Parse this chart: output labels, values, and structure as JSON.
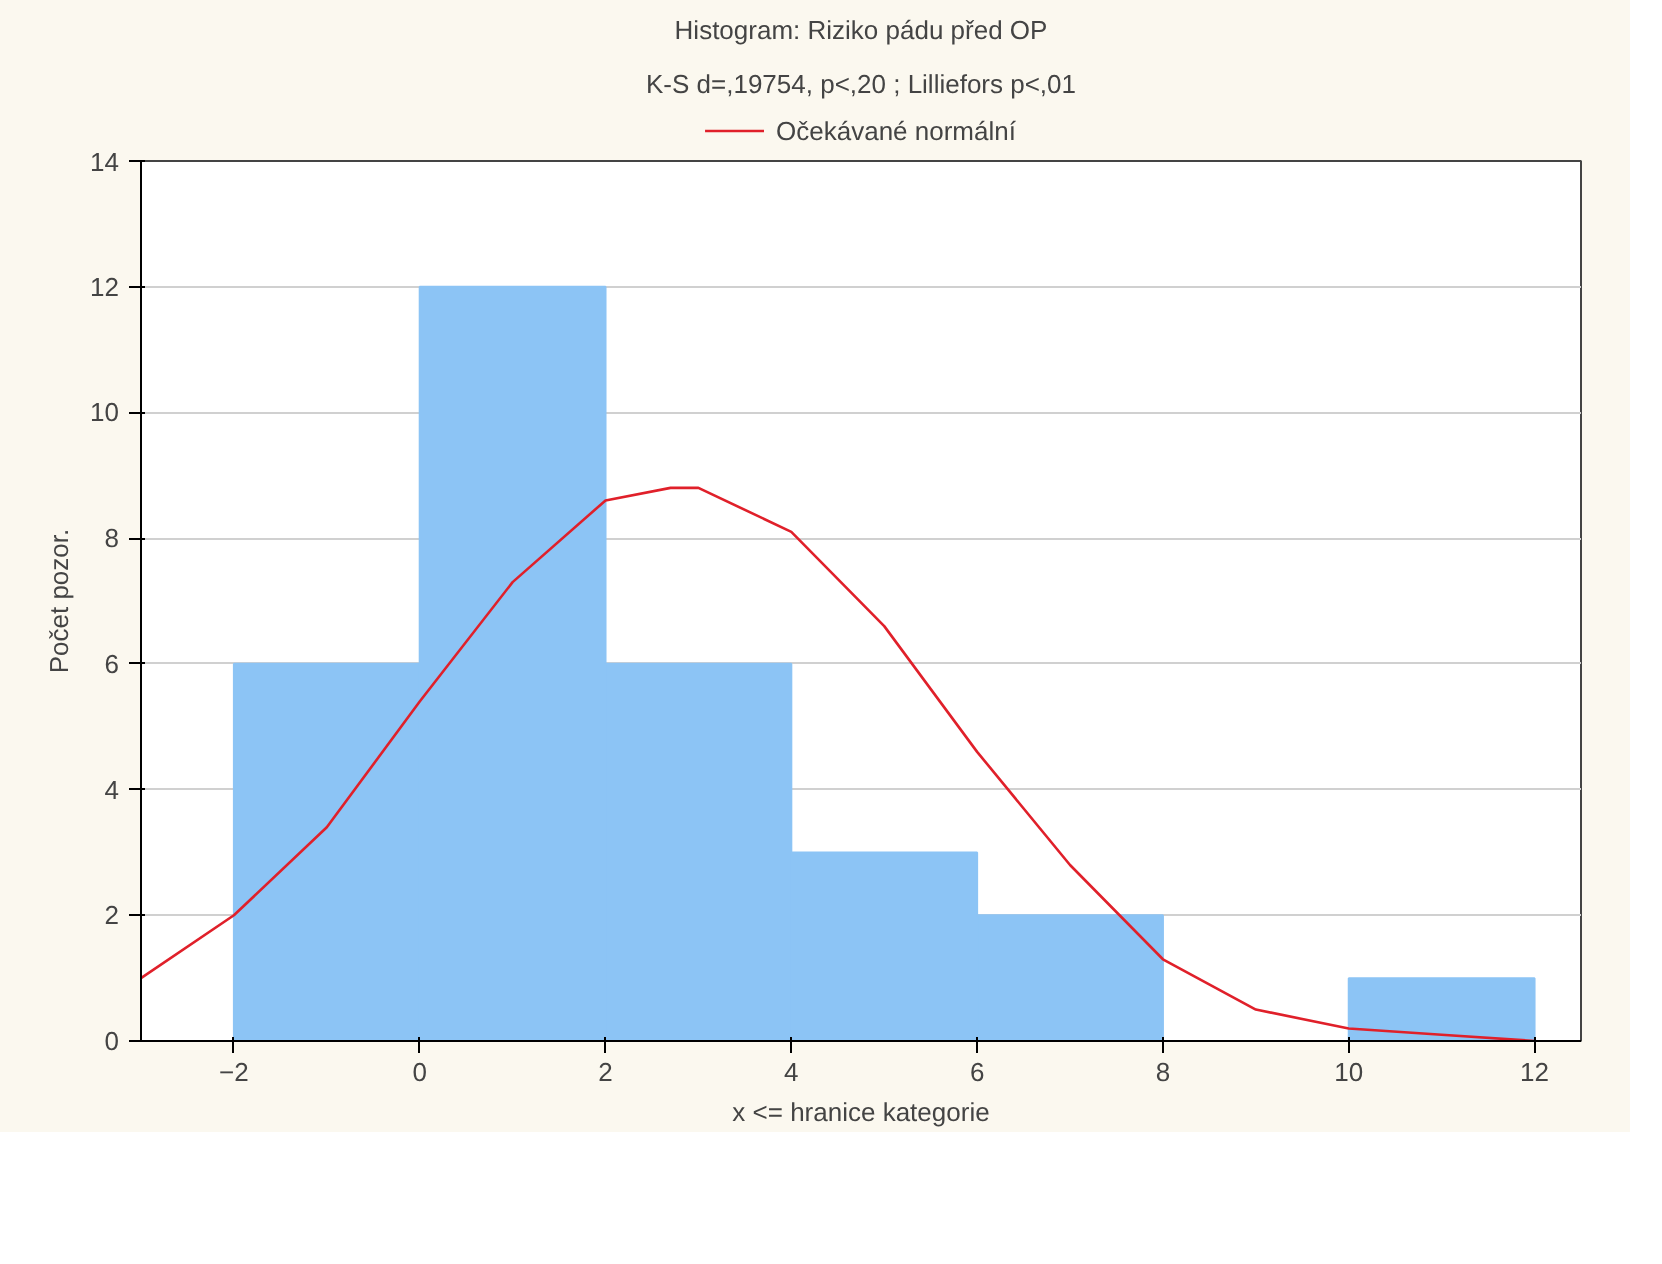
{
  "chart_data": {
    "type": "histogram",
    "title": "Histogram: Riziko pádu před OP",
    "subtitle": "K-S d=,19754, p<,20 ; Lilliefors p<,01",
    "xlabel": "x <= hranice kategorie",
    "ylabel": "Počet pozor.",
    "bins": [
      -2,
      0,
      2,
      4,
      6,
      8,
      10,
      12
    ],
    "values": [
      6,
      12,
      6,
      3,
      2,
      0,
      1
    ],
    "color": "#8cc4f5",
    "series": [
      {
        "type": "line",
        "name": "Očekávané normální",
        "color": "#e0202a",
        "x": [
          -3,
          -2,
          -1,
          0,
          1,
          2,
          2.7,
          3,
          4,
          5,
          6,
          7,
          8,
          9,
          10,
          11,
          12
        ],
        "values": [
          1.0,
          2.0,
          3.4,
          5.4,
          7.3,
          8.6,
          8.8,
          8.8,
          8.1,
          6.6,
          4.6,
          2.8,
          1.3,
          0.5,
          0.2,
          0.1,
          0.0
        ]
      }
    ],
    "xlim": [
      -3,
      12.5
    ],
    "ylim": [
      0,
      14
    ],
    "xticks": [
      -2,
      0,
      2,
      4,
      6,
      8,
      10,
      12
    ],
    "yticks": [
      0,
      2,
      4,
      6,
      8,
      10,
      12,
      14
    ],
    "grid": "y",
    "legend": "top",
    "marker": "none",
    "line_style": "solid"
  }
}
